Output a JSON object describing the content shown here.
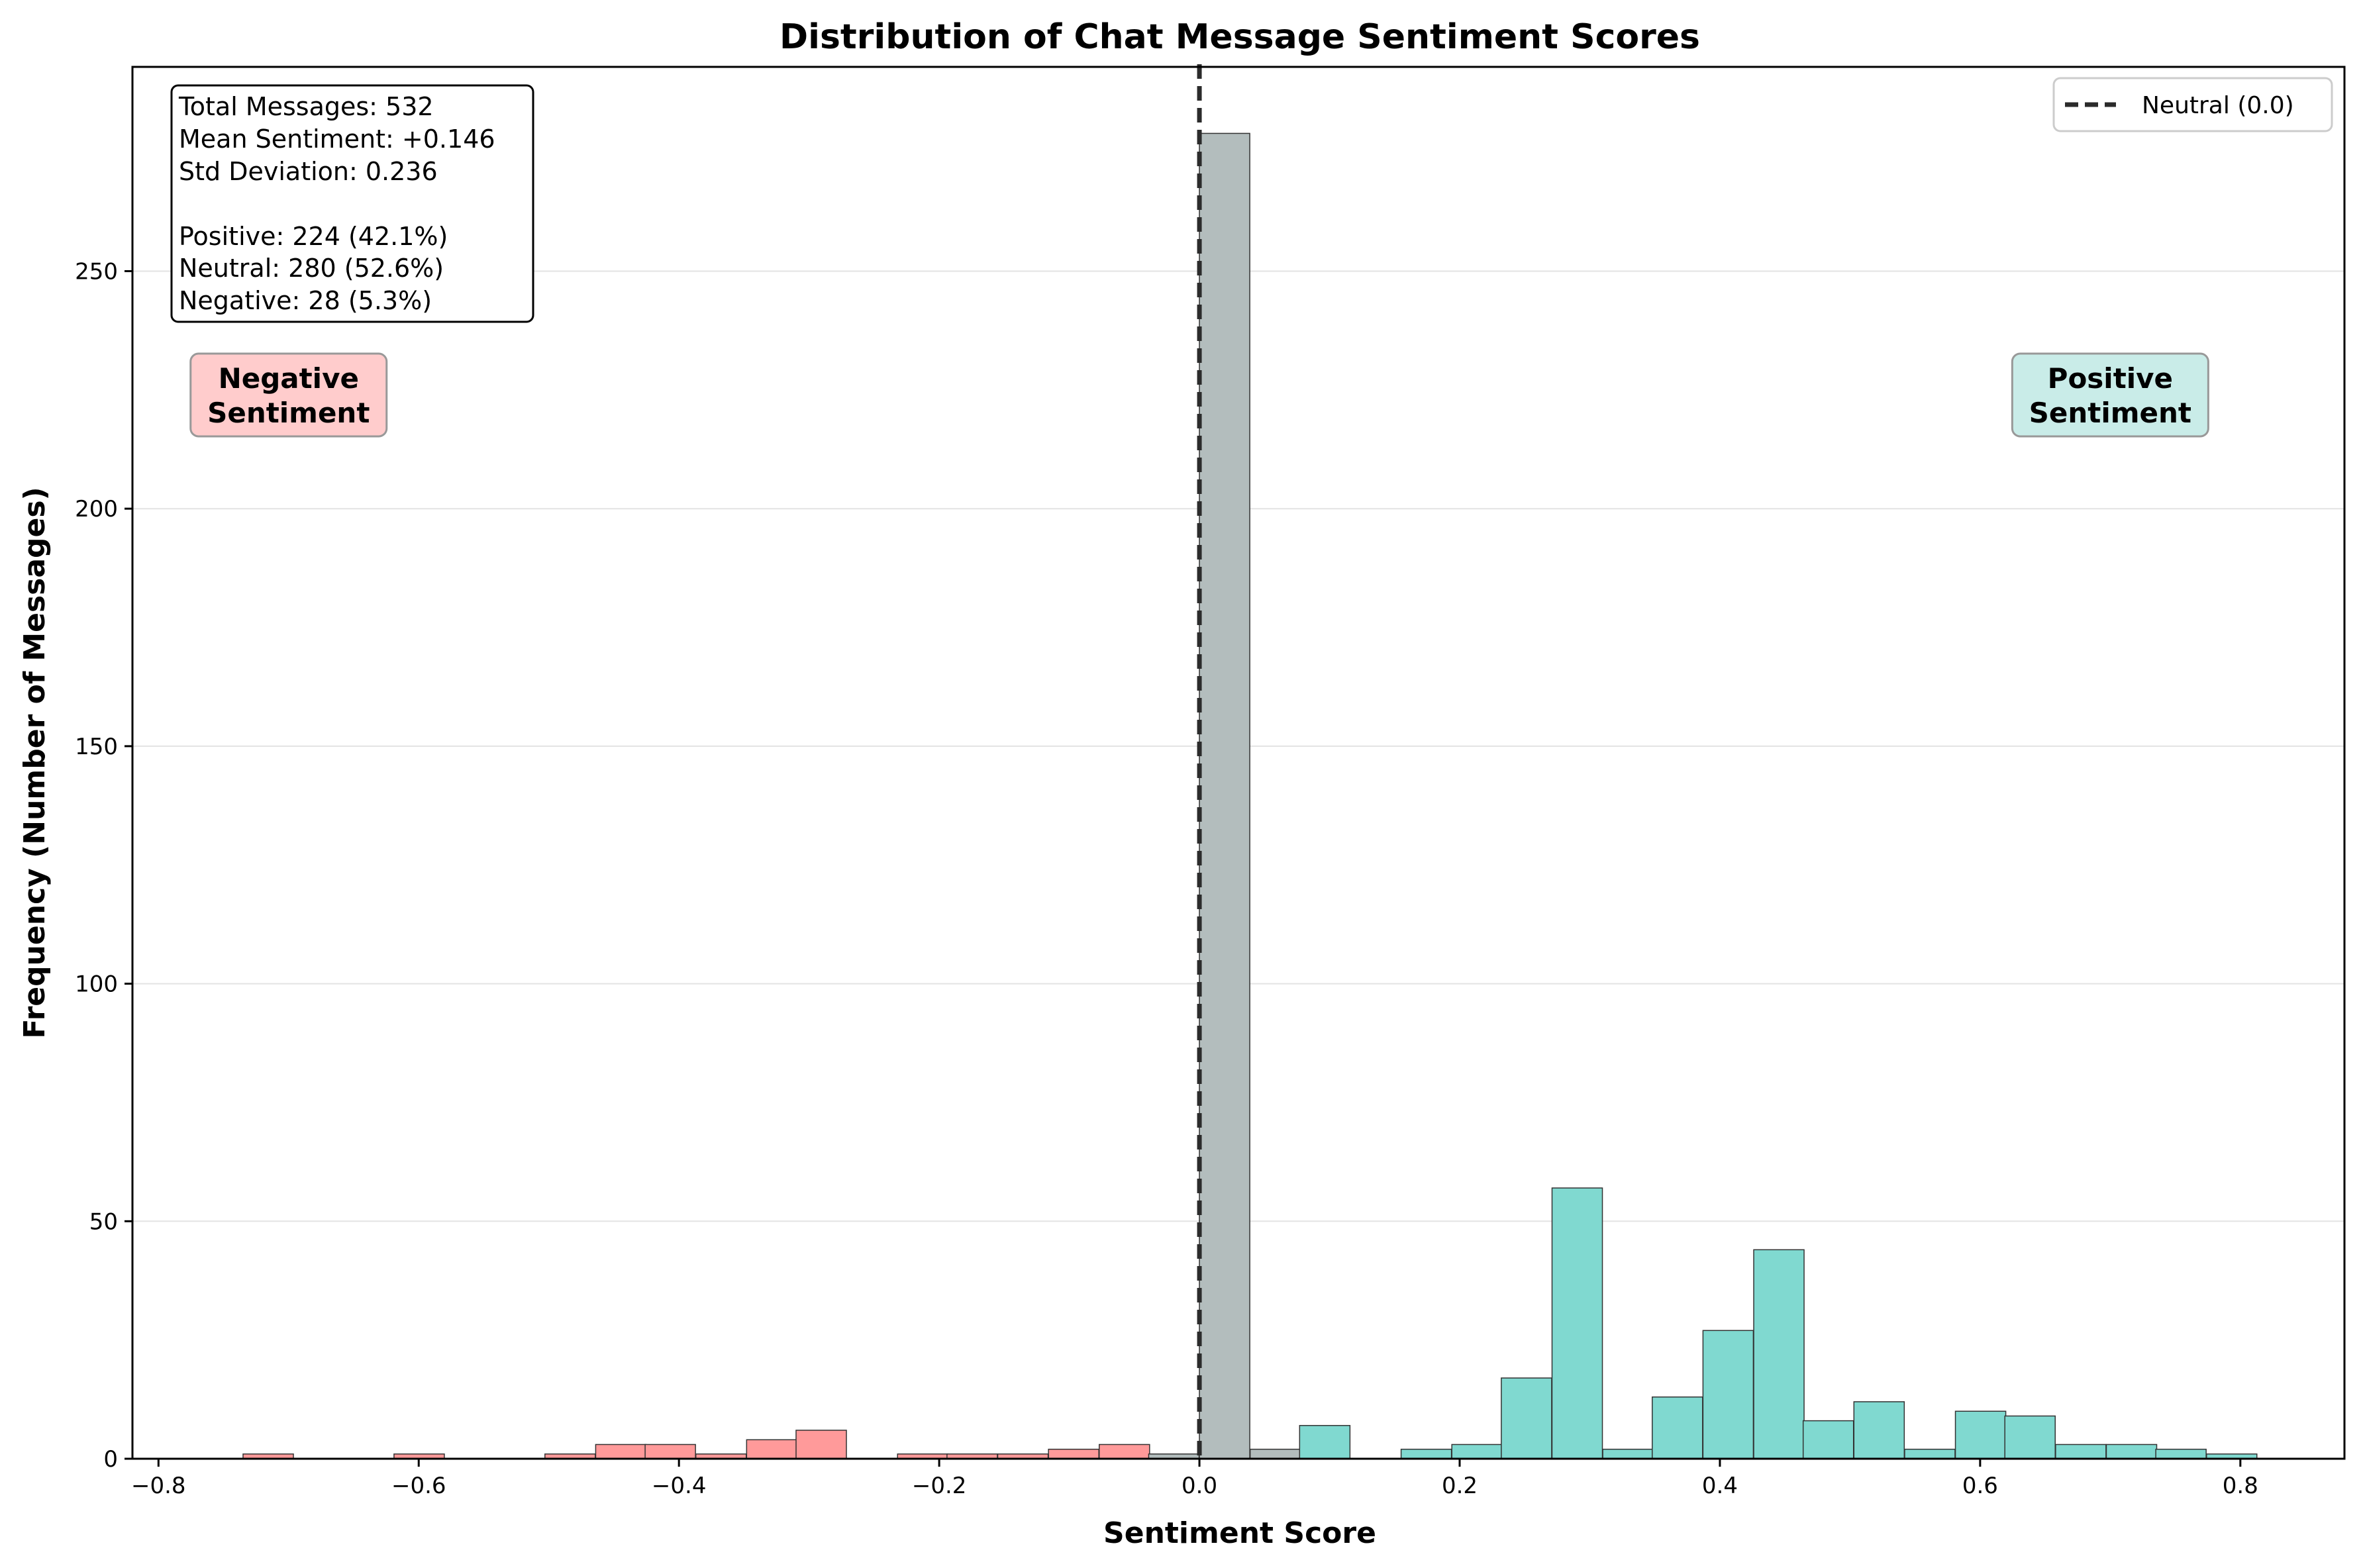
{
  "chart_data": {
    "type": "bar",
    "title": "Distribution of Chat Message Sentiment Scores",
    "xlabel": "Sentiment Score",
    "ylabel": "Frequency (Number of Messages)",
    "xlim": [
      -0.82,
      0.88
    ],
    "ylim": [
      0,
      293
    ],
    "xticks": [
      -0.8,
      -0.6,
      -0.4,
      -0.2,
      0.0,
      0.2,
      0.4,
      0.6,
      0.8
    ],
    "xtick_labels": [
      "−0.8",
      "−0.6",
      "−0.4",
      "−0.2",
      "0.0",
      "0.2",
      "0.4",
      "0.6",
      "0.8"
    ],
    "yticks": [
      0,
      50,
      100,
      150,
      200,
      250
    ],
    "ytick_labels": [
      "0",
      "50",
      "100",
      "150",
      "200",
      "250"
    ],
    "grid": "y-axis",
    "bin_width": 0.0387,
    "colors": {
      "negative": "#ff9a9a",
      "neutral": "#b3bdbd",
      "positive": "#80d9d0",
      "edge": "#333333",
      "neutral_line": "#2b2b2b"
    },
    "bins": [
      {
        "start": -0.735,
        "count": 1,
        "group": "negative"
      },
      {
        "start": -0.619,
        "count": 1,
        "group": "negative"
      },
      {
        "start": -0.503,
        "count": 1,
        "group": "negative"
      },
      {
        "start": -0.464,
        "count": 3,
        "group": "negative"
      },
      {
        "start": -0.426,
        "count": 3,
        "group": "negative"
      },
      {
        "start": -0.387,
        "count": 1,
        "group": "negative"
      },
      {
        "start": -0.348,
        "count": 4,
        "group": "negative"
      },
      {
        "start": -0.31,
        "count": 6,
        "group": "negative"
      },
      {
        "start": -0.232,
        "count": 1,
        "group": "negative"
      },
      {
        "start": -0.194,
        "count": 1,
        "group": "negative"
      },
      {
        "start": -0.155,
        "count": 1,
        "group": "negative"
      },
      {
        "start": -0.116,
        "count": 2,
        "group": "negative"
      },
      {
        "start": -0.077,
        "count": 3,
        "group": "negative"
      },
      {
        "start": -0.039,
        "count": 1,
        "group": "neutral"
      },
      {
        "start": 0.0,
        "count": 279,
        "group": "neutral"
      },
      {
        "start": 0.039,
        "count": 2,
        "group": "neutral"
      },
      {
        "start": 0.077,
        "count": 7,
        "group": "positive"
      },
      {
        "start": 0.155,
        "count": 2,
        "group": "positive"
      },
      {
        "start": 0.194,
        "count": 3,
        "group": "positive"
      },
      {
        "start": 0.232,
        "count": 17,
        "group": "positive"
      },
      {
        "start": 0.271,
        "count": 57,
        "group": "positive"
      },
      {
        "start": 0.31,
        "count": 2,
        "group": "positive"
      },
      {
        "start": 0.348,
        "count": 13,
        "group": "positive"
      },
      {
        "start": 0.387,
        "count": 27,
        "group": "positive"
      },
      {
        "start": 0.426,
        "count": 44,
        "group": "positive"
      },
      {
        "start": 0.464,
        "count": 8,
        "group": "positive"
      },
      {
        "start": 0.503,
        "count": 12,
        "group": "positive"
      },
      {
        "start": 0.542,
        "count": 2,
        "group": "positive"
      },
      {
        "start": 0.581,
        "count": 10,
        "group": "positive"
      },
      {
        "start": 0.619,
        "count": 9,
        "group": "positive"
      },
      {
        "start": 0.658,
        "count": 3,
        "group": "positive"
      },
      {
        "start": 0.697,
        "count": 3,
        "group": "positive"
      },
      {
        "start": 0.735,
        "count": 2,
        "group": "positive"
      },
      {
        "start": 0.774,
        "count": 1,
        "group": "positive"
      }
    ],
    "neutral_line": {
      "x": 0.0
    },
    "legend": {
      "position": "top-right",
      "label": "Neutral (0.0)"
    },
    "stats_box": {
      "lines": [
        "Total Messages: 532",
        "Mean Sentiment: +0.146",
        "Std Deviation: 0.236",
        "",
        "Positive: 224 (42.1%)",
        "Neutral: 280 (52.6%)",
        "Negative: 28 (5.3%)"
      ]
    },
    "annotations": {
      "negative": {
        "line1": "Negative",
        "line2": "Sentiment",
        "x": -0.7,
        "y": 224,
        "fill": "#ffcccc"
      },
      "positive": {
        "line1": "Positive",
        "line2": "Sentiment",
        "x": 0.7,
        "y": 224,
        "fill": "#c9ece8"
      }
    }
  }
}
